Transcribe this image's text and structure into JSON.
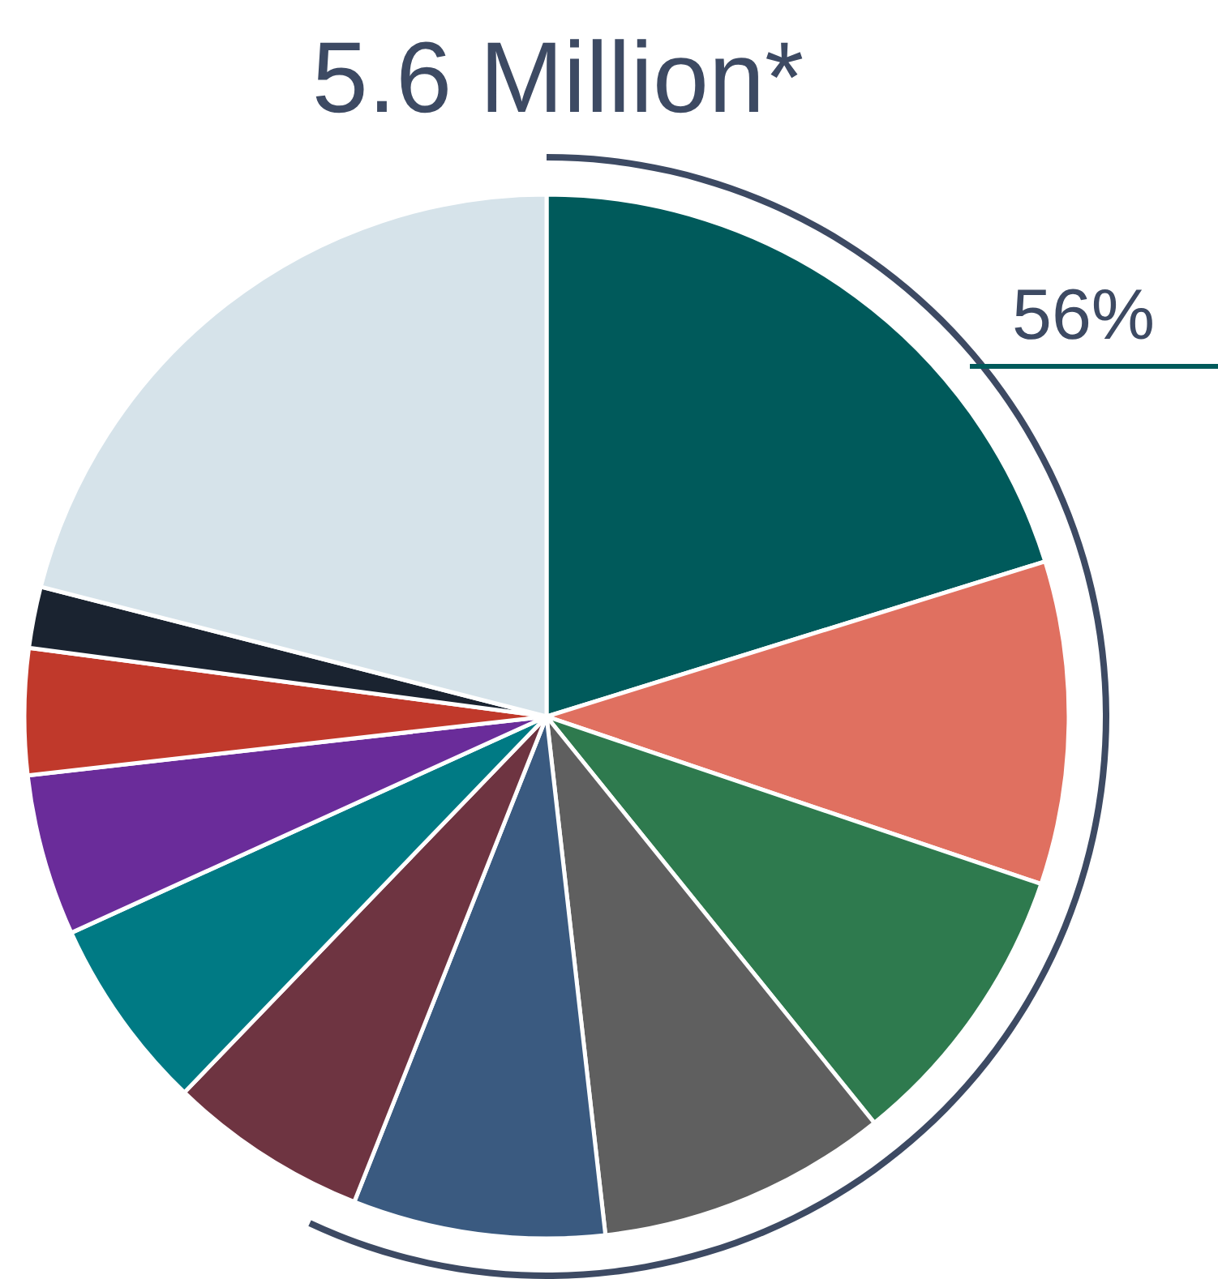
{
  "chart_data": {
    "type": "pie",
    "title": "5.6 Million*",
    "categories": [
      null,
      null,
      null,
      null,
      null,
      null,
      null,
      null,
      null,
      null,
      null
    ],
    "values": [
      20.2,
      10.0,
      9.0,
      9.0,
      7.8,
      6.2,
      6.0,
      5.0,
      3.9,
      1.9,
      21.0
    ],
    "colors": [
      "#005a5b",
      "#e07060",
      "#2e7a4e",
      "#5f5f5f",
      "#3a5a80",
      "#6e3441",
      "#007a84",
      "#6a2c9a",
      "#c0392b",
      "#1a2330",
      "#d6e3ea"
    ],
    "annotations": [
      "56%"
    ]
  }
}
